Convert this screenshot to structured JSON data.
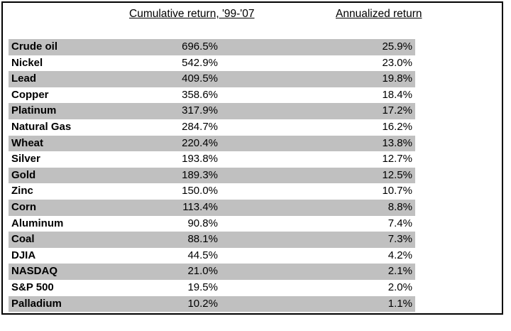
{
  "table": {
    "headers": {
      "cumulative": "Cumulative return, '99-'07",
      "annualized": "Annualized return"
    },
    "rows": [
      {
        "label": "Crude oil",
        "cumulative": "696.5%",
        "annualized": "25.9%"
      },
      {
        "label": "Nickel",
        "cumulative": "542.9%",
        "annualized": "23.0%"
      },
      {
        "label": "Lead",
        "cumulative": "409.5%",
        "annualized": "19.8%"
      },
      {
        "label": "Copper",
        "cumulative": "358.6%",
        "annualized": "18.4%"
      },
      {
        "label": "Platinum",
        "cumulative": "317.9%",
        "annualized": "17.2%"
      },
      {
        "label": "Natural Gas",
        "cumulative": "284.7%",
        "annualized": "16.2%"
      },
      {
        "label": "Wheat",
        "cumulative": "220.4%",
        "annualized": "13.8%"
      },
      {
        "label": "Silver",
        "cumulative": "193.8%",
        "annualized": "12.7%"
      },
      {
        "label": "Gold",
        "cumulative": "189.3%",
        "annualized": "12.5%"
      },
      {
        "label": "Zinc",
        "cumulative": "150.0%",
        "annualized": "10.7%"
      },
      {
        "label": "Corn",
        "cumulative": "113.4%",
        "annualized": "8.8%"
      },
      {
        "label": "Aluminum",
        "cumulative": "90.8%",
        "annualized": "7.4%"
      },
      {
        "label": "Coal",
        "cumulative": "88.1%",
        "annualized": "7.3%"
      },
      {
        "label": "DJIA",
        "cumulative": "44.5%",
        "annualized": "4.2%"
      },
      {
        "label": "NASDAQ",
        "cumulative": "21.0%",
        "annualized": "2.1%"
      },
      {
        "label": "S&P 500",
        "cumulative": "19.5%",
        "annualized": "2.0%"
      },
      {
        "label": "Palladium",
        "cumulative": "10.2%",
        "annualized": "1.1%"
      }
    ],
    "stripe_color": "#c0c0c0",
    "border_color": "#000000"
  },
  "chart_data": {
    "type": "table",
    "title": "",
    "columns": [
      "",
      "Cumulative return, '99-'07",
      "Annualized return"
    ],
    "categories": [
      "Crude oil",
      "Nickel",
      "Lead",
      "Copper",
      "Platinum",
      "Natural Gas",
      "Wheat",
      "Silver",
      "Gold",
      "Zinc",
      "Corn",
      "Aluminum",
      "Coal",
      "DJIA",
      "NASDAQ",
      "S&P 500",
      "Palladium"
    ],
    "series": [
      {
        "name": "Cumulative return, '99-'07 (%)",
        "values": [
          696.5,
          542.9,
          409.5,
          358.6,
          317.9,
          284.7,
          220.4,
          193.8,
          189.3,
          150.0,
          113.4,
          90.8,
          88.1,
          44.5,
          21.0,
          19.5,
          10.2
        ]
      },
      {
        "name": "Annualized return (%)",
        "values": [
          25.9,
          23.0,
          19.8,
          18.4,
          17.2,
          16.2,
          13.8,
          12.7,
          12.5,
          10.7,
          8.8,
          7.4,
          7.3,
          4.2,
          2.1,
          2.0,
          1.1
        ]
      }
    ],
    "layout_hints": {
      "striped_rows": true,
      "stripe_on_odd_ranks": true,
      "headers_underlined": true
    }
  }
}
